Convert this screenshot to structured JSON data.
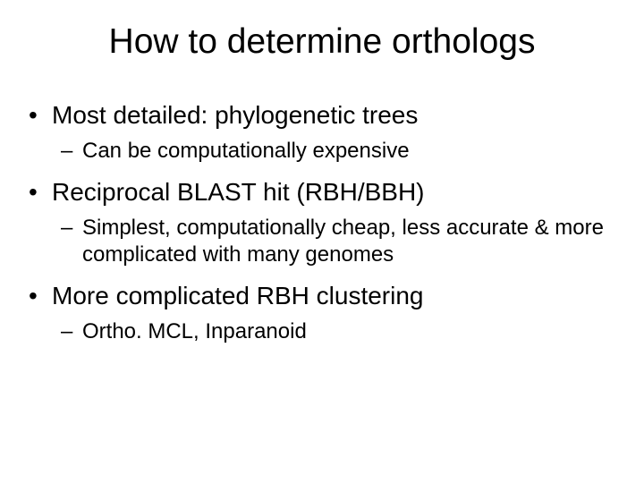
{
  "title": "How to determine orthologs",
  "title_fontsize": 39,
  "bullet_l1_fontsize": 28,
  "bullet_l2_fontsize": 24,
  "background_color": "#ffffff",
  "text_color": "#000000",
  "bullets": [
    {
      "text": "Most detailed: phylogenetic trees",
      "sub": [
        "Can be computationally expensive"
      ]
    },
    {
      "text": "Reciprocal BLAST hit (RBH/BBH)",
      "sub": [
        "Simplest, computationally cheap, less accurate & more complicated with many genomes"
      ]
    },
    {
      "text": "More complicated RBH clustering",
      "sub": [
        "Ortho. MCL, Inparanoid"
      ]
    }
  ]
}
